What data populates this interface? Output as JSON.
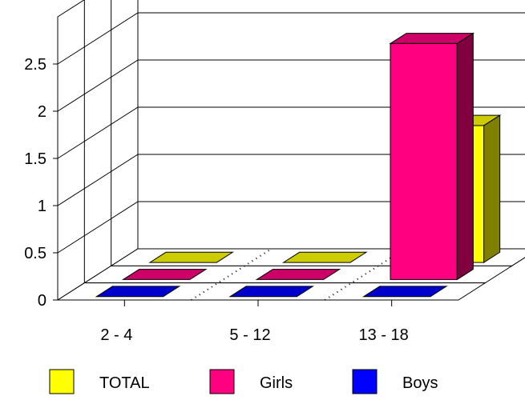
{
  "chart_data": {
    "type": "bar",
    "style": "3d-depth-bar",
    "categories": [
      "2 - 4",
      "5 - 12",
      "13 - 18"
    ],
    "series": [
      {
        "name": "TOTAL",
        "values": [
          0,
          0,
          1.45
        ],
        "color": "#ffff00"
      },
      {
        "name": "Girls",
        "values": [
          0,
          0,
          2.5
        ],
        "color": "#ff0080"
      },
      {
        "name": "Boys",
        "values": [
          0,
          0,
          0
        ],
        "color": "#0000ff"
      }
    ],
    "ylim": [
      0,
      2.5
    ],
    "yticks": [
      "0",
      "0.5",
      "1",
      "1.5",
      "2",
      "2.5"
    ],
    "grid": true,
    "legend_position": "bottom",
    "title": "",
    "xlabel": "",
    "ylabel": ""
  }
}
